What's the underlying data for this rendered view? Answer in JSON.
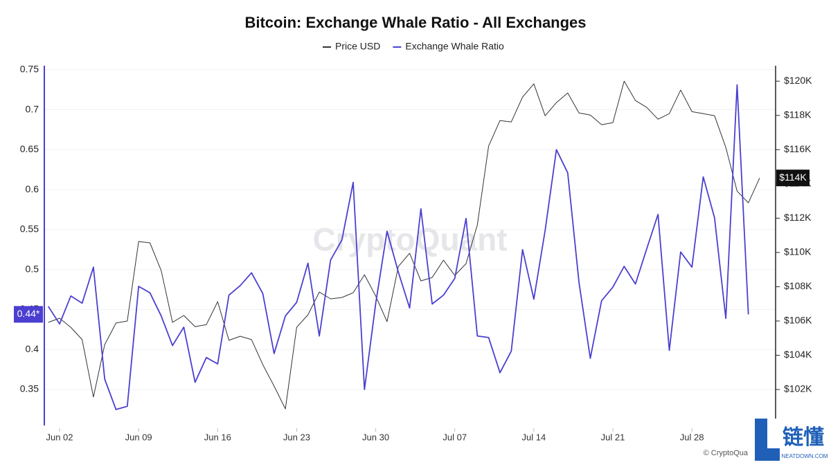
{
  "chart_data": {
    "type": "line",
    "title": "Bitcoin: Exchange Whale Ratio - All Exchanges",
    "watermark": "CryptoQuant",
    "source": "© CryptoQua",
    "logo": {
      "text": "链懂",
      "subtext": "NEATDOWN.COM"
    },
    "categories": [
      null,
      "Jun 02",
      null,
      null,
      null,
      null,
      null,
      null,
      "Jun 09",
      null,
      null,
      null,
      null,
      null,
      null,
      "Jun 16",
      null,
      null,
      null,
      null,
      null,
      null,
      "Jun 23",
      null,
      null,
      null,
      null,
      null,
      null,
      "Jun 30",
      null,
      null,
      null,
      null,
      null,
      null,
      "Jul 07",
      null,
      null,
      null,
      null,
      null,
      null,
      "Jul 14",
      null,
      null,
      null,
      null,
      null,
      null,
      "Jul 21",
      null,
      null,
      null,
      null,
      null,
      null,
      "Jul 28",
      null,
      null,
      null,
      null,
      null,
      null
    ],
    "series": [
      {
        "name": "Price USD",
        "color": "#333333",
        "axis": "y2",
        "last_label": "$114K",
        "values": [
          105920,
          106160,
          105630,
          104910,
          101560,
          104620,
          105880,
          106000,
          110640,
          110560,
          108940,
          105920,
          106320,
          105670,
          105790,
          107130,
          104870,
          105110,
          104910,
          103450,
          102200,
          100870,
          105630,
          106360,
          107690,
          107290,
          107370,
          107650,
          108700,
          107450,
          105960,
          109180,
          109950,
          108340,
          108540,
          109550,
          108660,
          109350,
          111610,
          116210,
          117700,
          117620,
          119070,
          119840,
          117980,
          118750,
          119310,
          118140,
          118020,
          117460,
          117580,
          120000,
          118870,
          118470,
          117780,
          118100,
          119480,
          118220,
          118100,
          117980,
          116130,
          113580,
          112900,
          114350
        ]
      },
      {
        "name": "Exchange Whale Ratio",
        "color": "#4a3fd0",
        "last_label": "0.44*",
        "values": [
          0.454,
          0.432,
          0.467,
          0.458,
          0.503,
          0.363,
          0.325,
          0.329,
          0.479,
          0.471,
          0.442,
          0.405,
          0.428,
          0.359,
          0.39,
          0.382,
          0.468,
          0.48,
          0.496,
          0.47,
          0.395,
          0.442,
          0.459,
          0.508,
          0.417,
          0.512,
          0.537,
          0.609,
          0.35,
          0.458,
          0.548,
          0.497,
          0.452,
          0.576,
          0.457,
          0.468,
          0.489,
          0.564,
          0.417,
          0.415,
          0.371,
          0.398,
          0.525,
          0.463,
          0.549,
          0.65,
          0.621,
          0.484,
          0.389,
          0.461,
          0.478,
          0.504,
          0.482,
          0.526,
          0.569,
          0.399,
          0.522,
          0.503,
          0.616,
          0.565,
          0.439,
          0.731,
          0.444,
          null
        ]
      }
    ],
    "ylim": [
      0.305,
      0.755
    ],
    "yticks": [
      0.35,
      0.4,
      0.45,
      0.5,
      0.55,
      0.6,
      0.65,
      0.7,
      0.75
    ],
    "y2lim": [
      99900,
      120900
    ],
    "y2ticks": [
      {
        "value": 102000,
        "label": "$102K"
      },
      {
        "value": 104000,
        "label": "$104K"
      },
      {
        "value": 106000,
        "label": "$106K"
      },
      {
        "value": 108000,
        "label": "$108K"
      },
      {
        "value": 110000,
        "label": "$110K"
      },
      {
        "value": 112000,
        "label": "$112K"
      },
      {
        "value": 114000,
        "label": "$114K"
      },
      {
        "value": 116000,
        "label": "$116K"
      },
      {
        "value": 118000,
        "label": "$118K"
      },
      {
        "value": 120000,
        "label": "$120K"
      }
    ],
    "grid": true
  }
}
